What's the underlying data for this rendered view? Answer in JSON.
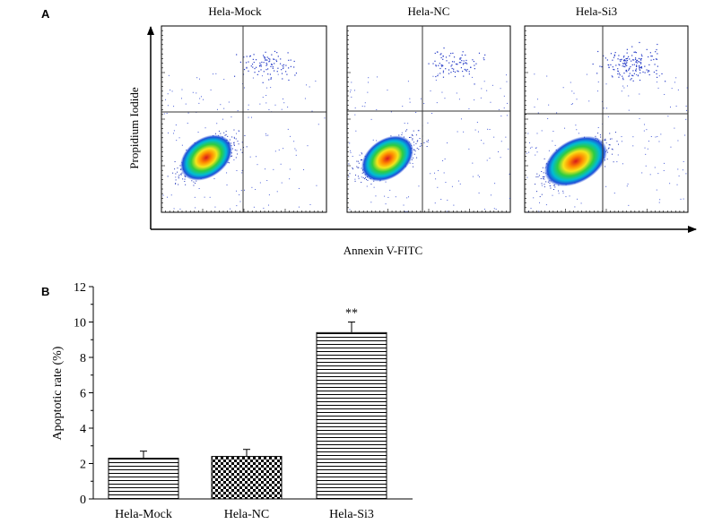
{
  "panels": {
    "a_label": "A",
    "b_label": "B"
  },
  "flow": {
    "plots": [
      {
        "title": "Hela-Mock",
        "cluster_spread": 1.0,
        "late_density": 0.55
      },
      {
        "title": "Hela-NC",
        "cluster_spread": 1.0,
        "late_density": 0.5
      },
      {
        "title": "Hela-Si3",
        "cluster_spread": 1.15,
        "late_density": 0.9
      }
    ],
    "xlabel": "Annexin V-FITC",
    "ylabel": "Propidium Iodide"
  },
  "chart_data": {
    "type": "bar",
    "categories": [
      "Hela-Mock",
      "Hela-NC",
      "Hela-Si3"
    ],
    "values": [
      2.3,
      2.4,
      9.4
    ],
    "errors": [
      0.4,
      0.4,
      0.6
    ],
    "annotations": [
      "",
      "",
      "**"
    ],
    "patterns": [
      "horizontal-lines",
      "checkerboard",
      "horizontal-lines"
    ],
    "ylabel": "Apoptotic rate (%)",
    "ylim": [
      0,
      12
    ],
    "yticks": [
      0,
      2,
      4,
      6,
      8,
      10,
      12
    ],
    "grid": false
  }
}
